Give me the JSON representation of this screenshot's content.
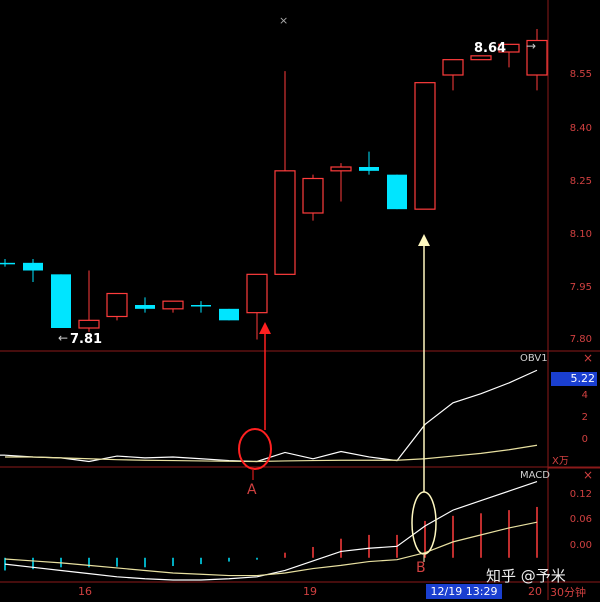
{
  "chart_data": [
    {
      "panel": "price",
      "type": "candlestick",
      "candles": [
        {
          "open": 7.99,
          "close": 7.99,
          "high": 8.0,
          "low": 7.98,
          "color": "cyan"
        },
        {
          "open": 7.99,
          "close": 7.97,
          "high": 8.0,
          "low": 7.94,
          "color": "cyan"
        },
        {
          "open": 7.96,
          "close": 7.82,
          "high": 7.96,
          "low": 7.82,
          "color": "cyan"
        },
        {
          "open": 7.82,
          "close": 7.84,
          "high": 7.97,
          "low": 7.81,
          "color": "red"
        },
        {
          "open": 7.85,
          "close": 7.91,
          "high": 7.91,
          "low": 7.84,
          "color": "red"
        },
        {
          "open": 7.88,
          "close": 7.87,
          "high": 7.9,
          "low": 7.86,
          "color": "cyan"
        },
        {
          "open": 7.87,
          "close": 7.89,
          "high": 7.89,
          "low": 7.86,
          "color": "red"
        },
        {
          "open": 7.88,
          "close": 7.88,
          "high": 7.89,
          "low": 7.86,
          "color": "cyan"
        },
        {
          "open": 7.87,
          "close": 7.84,
          "high": 7.87,
          "low": 7.84,
          "color": "cyan"
        },
        {
          "open": 7.86,
          "close": 7.96,
          "high": 7.96,
          "low": 7.79,
          "color": "red"
        },
        {
          "open": 7.96,
          "close": 8.23,
          "high": 8.49,
          "low": 7.96,
          "color": "red"
        },
        {
          "open": 8.12,
          "close": 8.21,
          "high": 8.22,
          "low": 8.1,
          "color": "red"
        },
        {
          "open": 8.23,
          "close": 8.24,
          "high": 8.25,
          "low": 8.15,
          "color": "red"
        },
        {
          "open": 8.24,
          "close": 8.23,
          "high": 8.28,
          "low": 8.22,
          "color": "cyan"
        },
        {
          "open": 8.22,
          "close": 8.13,
          "high": 8.22,
          "low": 8.13,
          "color": "cyan"
        },
        {
          "open": 8.13,
          "close": 8.46,
          "high": 8.46,
          "low": 8.13,
          "color": "red"
        },
        {
          "open": 8.48,
          "close": 8.52,
          "high": 8.52,
          "low": 8.44,
          "color": "red"
        },
        {
          "open": 8.52,
          "close": 8.53,
          "high": 8.53,
          "low": 8.52,
          "color": "red"
        },
        {
          "open": 8.54,
          "close": 8.56,
          "high": 8.56,
          "low": 8.5,
          "color": "red"
        },
        {
          "open": 8.48,
          "close": 8.57,
          "high": 8.6,
          "low": 8.44,
          "color": "red"
        }
      ],
      "ylim": [
        7.76,
        8.66
      ],
      "yticks": [
        "8.55",
        "8.40",
        "8.25",
        "8.10",
        "7.95",
        "7.80"
      ],
      "annotations": {
        "high": "8.64",
        "low": "7.81"
      }
    },
    {
      "panel": "obv",
      "type": "line",
      "title": "OBV1",
      "value_box": "5.22",
      "unit": "X万",
      "ylim": [
        -0.6,
        5.6
      ],
      "yticks": [
        "4",
        "2",
        "0"
      ],
      "series": [
        {
          "values": [
            0.0,
            -0.1,
            -0.15,
            -0.35,
            -0.05,
            -0.15,
            -0.1,
            -0.2,
            -0.3,
            -0.35,
            0.15,
            -0.2,
            0.2,
            -0.1,
            -0.3,
            1.7,
            2.9,
            3.4,
            4.0,
            4.7
          ]
        },
        {
          "values": [
            -0.1,
            -0.1,
            -0.15,
            -0.2,
            -0.25,
            -0.28,
            -0.3,
            -0.32,
            -0.34,
            -0.35,
            -0.32,
            -0.3,
            -0.28,
            -0.28,
            -0.28,
            -0.2,
            -0.05,
            0.1,
            0.3,
            0.55
          ]
        }
      ]
    },
    {
      "panel": "macd",
      "type": "line+bar",
      "title": "MACD",
      "ylim": [
        -0.035,
        0.135
      ],
      "yticks": [
        "0.12",
        "0.06",
        "0.00"
      ],
      "histogram": [
        -0.02,
        -0.018,
        -0.015,
        -0.015,
        -0.014,
        -0.015,
        -0.013,
        -0.01,
        -0.006,
        -0.003,
        0.008,
        0.017,
        0.03,
        0.036,
        0.036,
        0.058,
        0.066,
        0.07,
        0.075,
        0.08
      ],
      "series": [
        {
          "values": [
            -0.01,
            -0.015,
            -0.02,
            -0.025,
            -0.03,
            -0.033,
            -0.035,
            -0.035,
            -0.033,
            -0.03,
            -0.02,
            -0.005,
            0.01,
            0.015,
            0.018,
            0.05,
            0.075,
            0.09,
            0.105,
            0.12
          ]
        },
        {
          "values": [
            -0.002,
            -0.005,
            -0.008,
            -0.012,
            -0.016,
            -0.02,
            -0.024,
            -0.026,
            -0.028,
            -0.028,
            -0.024,
            -0.017,
            -0.012,
            -0.006,
            -0.003,
            0.008,
            0.025,
            0.036,
            0.047,
            0.056
          ]
        }
      ]
    }
  ],
  "markers": {
    "a": "A",
    "b": "B"
  },
  "axis": {
    "dates": [
      "16",
      "19",
      "20"
    ],
    "period": "30分钟",
    "cursor_time": "12/19 13:29"
  },
  "watermark": "知乎 @予米",
  "colors": {
    "up": "#ff3c3c",
    "down": "#00e5ff",
    "grid": "#8b1a1a",
    "line1": "#ffffff",
    "line2": "#e8e0a0"
  }
}
